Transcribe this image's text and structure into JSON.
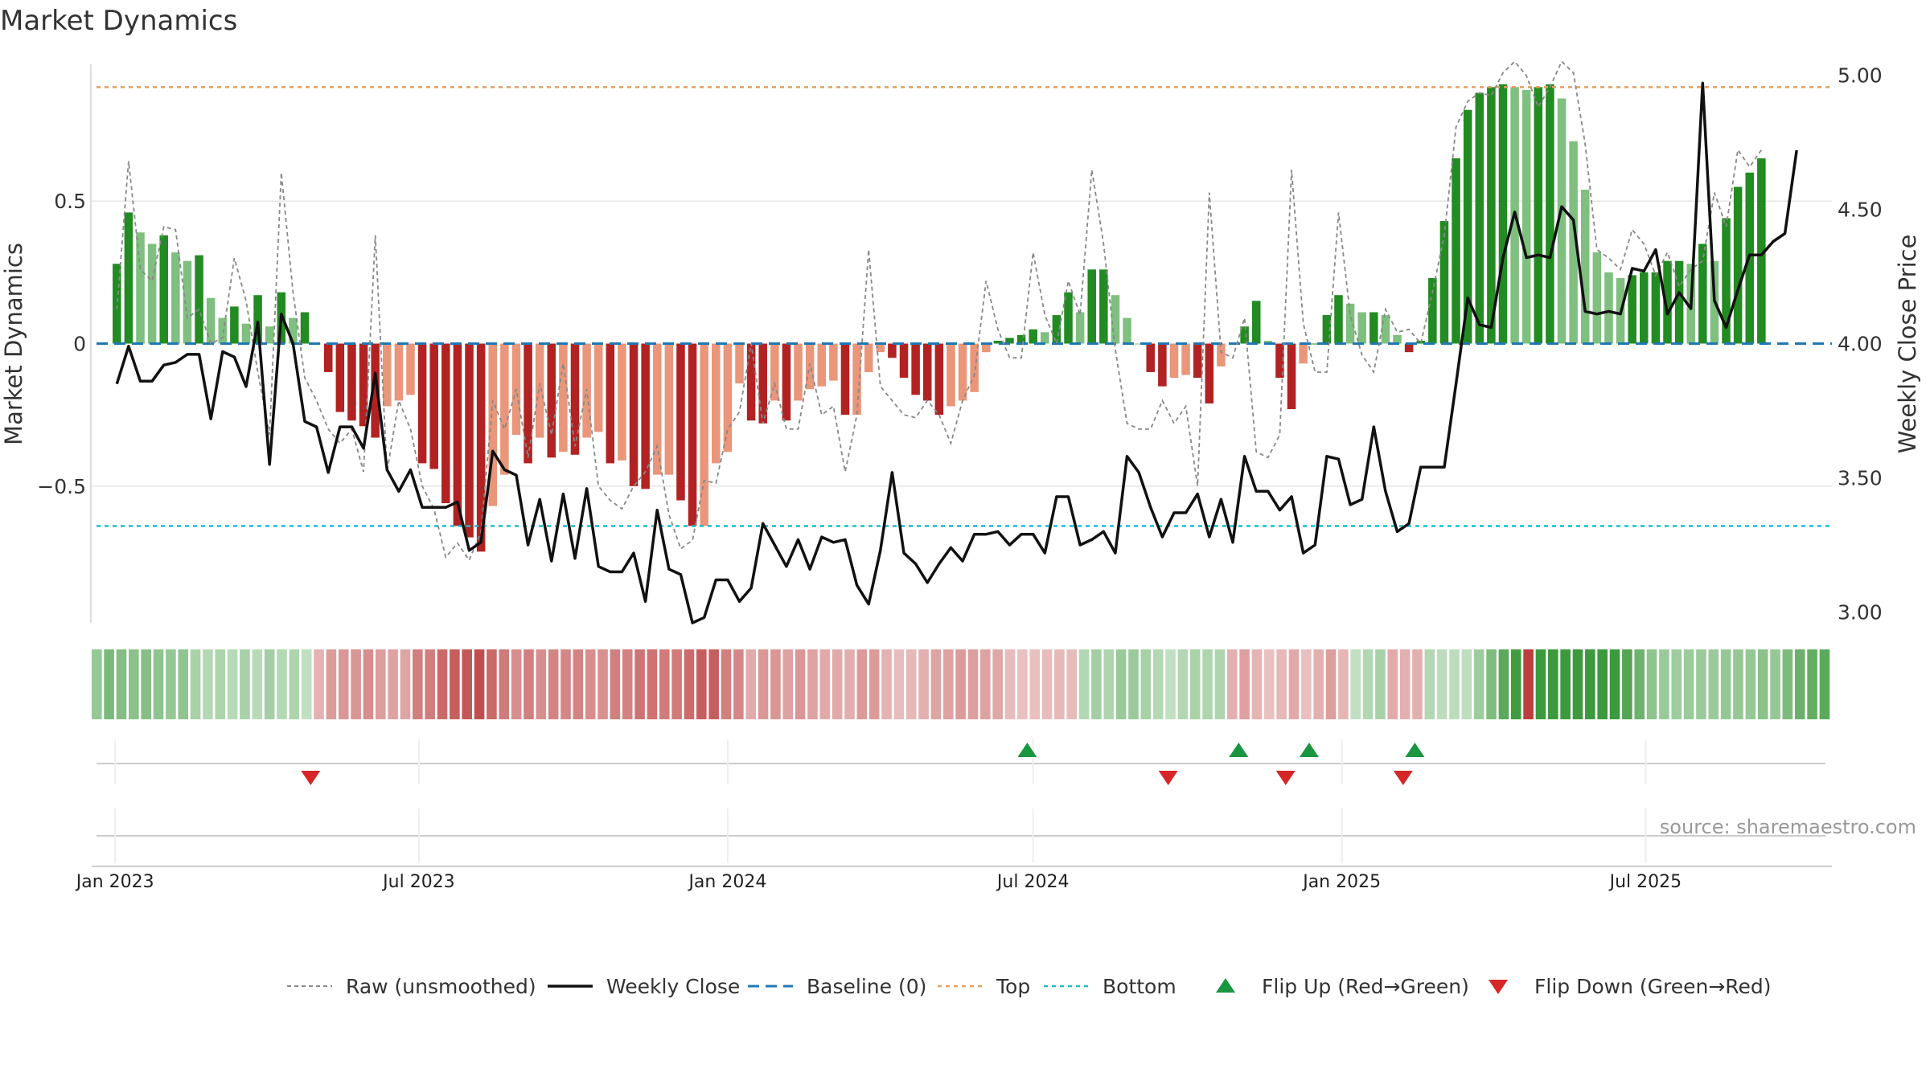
{
  "chart_data": {
    "type": "bar",
    "title": "Market Dynamics",
    "ylabel_left": "Market Dynamics",
    "ylabel_right": "Weekly Close Price",
    "source": "source: sharemaestro.com",
    "x_ticks": [
      {
        "date": "2023-01-01",
        "label": "Jan 2023"
      },
      {
        "date": "2023-07-01",
        "label": "Jul 2023"
      },
      {
        "date": "2024-01-01",
        "label": "Jan 2024"
      },
      {
        "date": "2024-07-01",
        "label": "Jul 2024"
      },
      {
        "date": "2025-01-01",
        "label": "Jan 2025"
      },
      {
        "date": "2025-07-01",
        "label": "Jul 2025"
      }
    ],
    "x_range": [
      "2022-12-18",
      "2025-10-20"
    ],
    "y_left": {
      "min": -0.98,
      "max": 0.98,
      "ticks": [
        {
          "v": 0.5,
          "label": "0.5"
        },
        {
          "v": 0,
          "label": "0"
        },
        {
          "v": -0.5,
          "label": "−0.5"
        }
      ]
    },
    "y_right": {
      "min": 2.96,
      "max": 5.04,
      "ticks": [
        {
          "v": 5.0,
          "label": "5.00"
        },
        {
          "v": 4.5,
          "label": "4.50"
        },
        {
          "v": 4.0,
          "label": "4.00"
        },
        {
          "v": 3.5,
          "label": "3.50"
        },
        {
          "v": 3.0,
          "label": "3.00"
        }
      ]
    },
    "lines": {
      "top": 0.9,
      "bottom": -0.64,
      "baseline": 0
    },
    "colors": {
      "strong_green": "#228b22",
      "light_green": "#7fbf7f",
      "strong_red": "#b22222",
      "light_red": "#e9967a",
      "close": "#111111",
      "raw": "#888888",
      "top": "#e0a060",
      "bottom": "#17becf",
      "baseline": "#1f77b4",
      "flip_up": "#1a9641",
      "flip_down": "#d62728"
    },
    "weeks_start": "2023-01-02",
    "smoothed": [
      0.28,
      0.46,
      0.39,
      0.35,
      0.38,
      0.32,
      0.29,
      0.31,
      0.16,
      0.09,
      0.13,
      0.07,
      0.17,
      0.06,
      0.18,
      0.09,
      0.11,
      0.0,
      -0.1,
      -0.24,
      -0.27,
      -0.29,
      -0.33,
      -0.22,
      -0.2,
      -0.18,
      -0.42,
      -0.44,
      -0.56,
      -0.64,
      -0.68,
      -0.73,
      -0.57,
      -0.46,
      -0.32,
      -0.42,
      -0.33,
      -0.4,
      -0.38,
      -0.39,
      -0.33,
      -0.31,
      -0.42,
      -0.41,
      -0.5,
      -0.51,
      -0.46,
      -0.46,
      -0.55,
      -0.64,
      -0.64,
      -0.42,
      -0.38,
      -0.14,
      -0.27,
      -0.28,
      -0.2,
      -0.27,
      -0.2,
      -0.16,
      -0.15,
      -0.13,
      -0.25,
      -0.25,
      -0.1,
      -0.03,
      -0.05,
      -0.12,
      -0.18,
      -0.2,
      -0.25,
      -0.22,
      -0.2,
      -0.17,
      -0.03,
      0.01,
      0.02,
      0.03,
      0.05,
      0.04,
      0.1,
      0.18,
      0.11,
      0.26,
      0.26,
      0.17,
      0.09,
      0.0,
      -0.1,
      -0.15,
      -0.12,
      -0.11,
      -0.12,
      -0.21,
      -0.08,
      0.0,
      0.06,
      0.15,
      0.01,
      -0.12,
      -0.23,
      -0.07,
      0.0,
      0.1,
      0.17,
      0.14,
      0.11,
      0.11,
      0.1,
      0.03,
      -0.03,
      0.01,
      0.23,
      0.43,
      0.65,
      0.82,
      0.88,
      0.9,
      0.91,
      0.9,
      0.89,
      0.9,
      0.91,
      0.86,
      0.71,
      0.54,
      0.32,
      0.25,
      0.23,
      0.24,
      0.25,
      0.25,
      0.29,
      0.29,
      0.28,
      0.35,
      0.29,
      0.44,
      0.55,
      0.6,
      0.65
    ],
    "raw": [
      0.12,
      0.64,
      0.26,
      0.22,
      0.41,
      0.4,
      0.09,
      0.12,
      0.0,
      0.02,
      0.3,
      0.15,
      -0.1,
      -0.32,
      0.6,
      0.18,
      -0.12,
      -0.2,
      -0.3,
      -0.35,
      -0.3,
      -0.45,
      0.38,
      -0.45,
      -0.2,
      -0.3,
      -0.5,
      -0.58,
      -0.75,
      -0.7,
      -0.76,
      -0.66,
      -0.2,
      -0.3,
      -0.16,
      -0.4,
      -0.14,
      -0.32,
      -0.07,
      -0.36,
      -0.16,
      -0.5,
      -0.55,
      -0.58,
      -0.5,
      -0.45,
      -0.36,
      -0.6,
      -0.72,
      -0.69,
      -0.48,
      -0.49,
      -0.3,
      -0.24,
      0.0,
      -0.28,
      -0.14,
      -0.3,
      -0.3,
      -0.07,
      -0.25,
      -0.22,
      -0.45,
      -0.25,
      0.33,
      -0.15,
      -0.2,
      -0.25,
      -0.26,
      -0.2,
      -0.25,
      -0.35,
      -0.2,
      -0.11,
      0.22,
      0.05,
      -0.05,
      -0.05,
      0.32,
      0.1,
      0.0,
      0.22,
      0.1,
      0.61,
      0.35,
      -0.02,
      -0.28,
      -0.3,
      -0.3,
      -0.2,
      -0.28,
      -0.22,
      -0.5,
      0.53,
      -0.03,
      -0.05,
      0.09,
      -0.38,
      -0.4,
      -0.32,
      0.61,
      0.07,
      -0.1,
      -0.1,
      0.46,
      0.1,
      -0.04,
      -0.1,
      0.12,
      0.04,
      0.05,
      0.0,
      0.18,
      0.38,
      0.76,
      0.85,
      0.88,
      0.87,
      0.95,
      0.99,
      0.94,
      0.83,
      0.9,
      0.99,
      0.95,
      0.7,
      0.33,
      0.3,
      0.26,
      0.4,
      0.35,
      0.24,
      0.32,
      0.2,
      0.26,
      0.29,
      0.53,
      0.41,
      0.68,
      0.62,
      0.68
    ],
    "close": [
      3.85,
      3.99,
      3.86,
      3.86,
      3.92,
      3.93,
      3.96,
      3.96,
      3.72,
      3.97,
      3.95,
      3.84,
      4.08,
      3.55,
      4.11,
      4.0,
      3.71,
      3.69,
      3.52,
      3.69,
      3.69,
      3.61,
      3.89,
      3.53,
      3.45,
      3.53,
      3.39,
      3.39,
      3.39,
      3.41,
      3.23,
      3.26,
      3.6,
      3.53,
      3.51,
      3.25,
      3.42,
      3.19,
      3.44,
      3.2,
      3.46,
      3.17,
      3.15,
      3.15,
      3.22,
      3.04,
      3.38,
      3.16,
      3.14,
      2.96,
      2.98,
      3.12,
      3.12,
      3.04,
      3.09,
      3.33,
      3.25,
      3.17,
      3.27,
      3.16,
      3.28,
      3.26,
      3.27,
      3.1,
      3.03,
      3.23,
      3.52,
      3.22,
      3.18,
      3.11,
      3.18,
      3.24,
      3.19,
      3.29,
      3.29,
      3.3,
      3.25,
      3.29,
      3.29,
      3.22,
      3.43,
      3.43,
      3.25,
      3.27,
      3.3,
      3.22,
      3.58,
      3.52,
      3.39,
      3.28,
      3.37,
      3.37,
      3.44,
      3.28,
      3.42,
      3.26,
      3.58,
      3.45,
      3.45,
      3.38,
      3.43,
      3.22,
      3.25,
      3.58,
      3.57,
      3.4,
      3.42,
      3.69,
      3.45,
      3.3,
      3.33,
      3.54,
      3.54,
      3.54,
      3.85,
      4.17,
      4.07,
      4.06,
      4.32,
      4.49,
      4.32,
      4.33,
      4.32,
      4.51,
      4.46,
      4.12,
      4.11,
      4.12,
      4.11,
      4.28,
      4.27,
      4.35,
      4.11,
      4.19,
      4.13,
      4.97,
      4.16,
      4.06,
      4.2,
      4.33,
      4.33,
      4.38,
      4.41,
      4.72
    ],
    "regime": [
      1,
      1,
      1,
      1,
      1,
      1,
      1,
      1,
      1,
      1,
      1,
      1,
      1,
      1,
      1,
      1,
      1,
      1,
      -1,
      -1,
      -1,
      -1,
      -1,
      -1,
      -1,
      -1,
      -1,
      -1,
      -1,
      -1,
      -1,
      -1,
      -1,
      -1,
      -1,
      -1,
      -1,
      -1,
      -1,
      -1,
      -1,
      -1,
      -1,
      -1,
      -1,
      -1,
      -1,
      -1,
      -1,
      -1,
      -1,
      -1,
      -1,
      -1,
      -1,
      -1,
      -1,
      -1,
      -1,
      -1,
      -1,
      -1,
      -1,
      -1,
      -1,
      -1,
      -1,
      -1,
      -1,
      -1,
      -1,
      -1,
      -1,
      -1,
      -1,
      -1,
      -1,
      -1,
      -1,
      -1,
      1,
      1,
      1,
      1,
      1,
      1,
      1,
      1,
      1,
      1,
      1,
      1,
      -1,
      -1,
      -1,
      -1,
      -1,
      -1,
      -1,
      -1,
      -1,
      -1,
      1,
      1,
      1,
      -1,
      -1,
      -1,
      1,
      1,
      1,
      1,
      1,
      1,
      1,
      1,
      -1,
      1,
      1,
      1,
      1,
      1,
      1,
      1,
      1,
      1,
      1,
      1,
      1,
      1,
      1,
      1,
      1,
      1,
      1,
      1,
      1,
      1,
      1,
      1,
      1,
      1,
      1,
      1,
      1,
      1,
      1,
      1,
      1
    ],
    "flips_up": [
      "2024-06-24",
      "2024-10-28",
      "2024-12-09",
      "2025-02-10"
    ],
    "flips_down": [
      "2023-04-24",
      "2024-09-16",
      "2024-11-25",
      "2025-02-03"
    ],
    "legend": [
      "Raw (unsmoothed)",
      "Weekly Close",
      "Baseline (0)",
      "Top",
      "Bottom",
      "Flip Up (Red→Green)",
      "Flip Down (Green→Red)"
    ]
  }
}
